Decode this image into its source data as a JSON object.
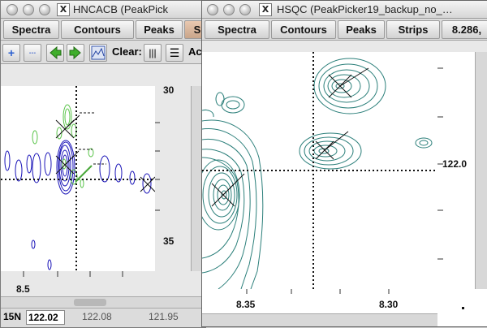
{
  "left_window": {
    "title": "HNCACB (PeakPick",
    "menu": [
      "Spectra",
      "Contours",
      "Peaks",
      "S"
    ],
    "clear_label": "Clear:",
    "act_label": "Act",
    "y_ticks": [
      "30",
      "35"
    ],
    "x_ticks": [
      "8.5"
    ],
    "status": {
      "axis": "15N",
      "value": "122.02",
      "range_a": "122.08",
      "range_b": "121.95"
    }
  },
  "right_window": {
    "title": "HSQC (PeakPicker19_backup_no_",
    "menu": [
      "Spectra",
      "Contours",
      "Peaks",
      "Strips",
      "8.286,"
    ],
    "y_ticks": [
      "122.0"
    ],
    "x_ticks": [
      "8.35",
      "8.30"
    ]
  },
  "colors": {
    "hsqc_contour": "#2b7f7a",
    "hncacb_positive": "#5ac44a",
    "hncacb_negative": "#1a14b8",
    "peak_marker": "#111111"
  },
  "icons": [
    "add-peak-icon",
    "delete-peak-icon",
    "back-arrow-icon",
    "forward-arrow-icon",
    "spectrum-icon",
    "grid-columns-icon",
    "grid-rows-icon"
  ]
}
